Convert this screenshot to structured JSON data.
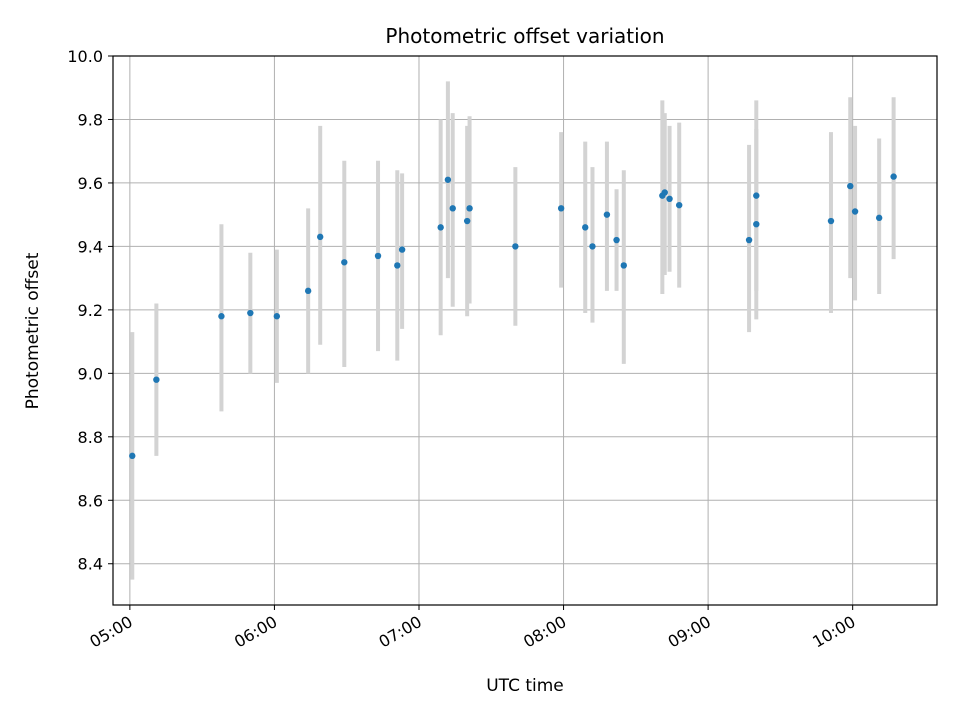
{
  "chart_data": {
    "type": "scatter",
    "title": "Photometric offset variation",
    "xlabel": "UTC time",
    "ylabel": "Photometric offset",
    "ylim": [
      8.27,
      10.0
    ],
    "xlim": [
      "04:53",
      "10:35"
    ],
    "yticks": [
      "8.4",
      "8.6",
      "8.8",
      "9.0",
      "9.2",
      "9.4",
      "9.6",
      "9.8",
      "10.0"
    ],
    "xticks": [
      "05:00",
      "06:00",
      "07:00",
      "08:00",
      "09:00",
      "10:00"
    ],
    "grid": true,
    "colors": {
      "point": "#1f77b4",
      "errorbar": "#d3d3d3",
      "grid": "#b0b0b0"
    },
    "points": [
      {
        "t": "05:01",
        "y": 8.74,
        "lo": 8.35,
        "hi": 9.13
      },
      {
        "t": "05:11",
        "y": 8.98,
        "lo": 8.74,
        "hi": 9.22
      },
      {
        "t": "05:38",
        "y": 9.18,
        "lo": 8.88,
        "hi": 9.47
      },
      {
        "t": "05:50",
        "y": 9.19,
        "lo": 9.0,
        "hi": 9.38
      },
      {
        "t": "06:01",
        "y": 9.18,
        "lo": 8.97,
        "hi": 9.39
      },
      {
        "t": "06:14",
        "y": 9.26,
        "lo": 9.0,
        "hi": 9.52
      },
      {
        "t": "06:19",
        "y": 9.43,
        "lo": 9.09,
        "hi": 9.78
      },
      {
        "t": "06:29",
        "y": 9.35,
        "lo": 9.02,
        "hi": 9.67
      },
      {
        "t": "06:43",
        "y": 9.37,
        "lo": 9.07,
        "hi": 9.67
      },
      {
        "t": "06:51",
        "y": 9.34,
        "lo": 9.04,
        "hi": 9.64
      },
      {
        "t": "06:53",
        "y": 9.39,
        "lo": 9.14,
        "hi": 9.63
      },
      {
        "t": "07:09",
        "y": 9.46,
        "lo": 9.12,
        "hi": 9.8
      },
      {
        "t": "07:12",
        "y": 9.61,
        "lo": 9.3,
        "hi": 9.92
      },
      {
        "t": "07:14",
        "y": 9.52,
        "lo": 9.21,
        "hi": 9.82
      },
      {
        "t": "07:20",
        "y": 9.48,
        "lo": 9.18,
        "hi": 9.78
      },
      {
        "t": "07:21",
        "y": 9.52,
        "lo": 9.22,
        "hi": 9.81
      },
      {
        "t": "07:40",
        "y": 9.4,
        "lo": 9.15,
        "hi": 9.65
      },
      {
        "t": "07:59",
        "y": 9.52,
        "lo": 9.27,
        "hi": 9.76
      },
      {
        "t": "08:09",
        "y": 9.46,
        "lo": 9.19,
        "hi": 9.73
      },
      {
        "t": "08:12",
        "y": 9.4,
        "lo": 9.16,
        "hi": 9.65
      },
      {
        "t": "08:18",
        "y": 9.5,
        "lo": 9.26,
        "hi": 9.73
      },
      {
        "t": "08:22",
        "y": 9.42,
        "lo": 9.26,
        "hi": 9.58
      },
      {
        "t": "08:25",
        "y": 9.34,
        "lo": 9.03,
        "hi": 9.64
      },
      {
        "t": "08:41",
        "y": 9.56,
        "lo": 9.25,
        "hi": 9.86
      },
      {
        "t": "08:42",
        "y": 9.57,
        "lo": 9.31,
        "hi": 9.82
      },
      {
        "t": "08:44",
        "y": 9.55,
        "lo": 9.32,
        "hi": 9.78
      },
      {
        "t": "08:48",
        "y": 9.53,
        "lo": 9.27,
        "hi": 9.79
      },
      {
        "t": "09:17",
        "y": 9.42,
        "lo": 9.13,
        "hi": 9.72
      },
      {
        "t": "09:20",
        "y": 9.56,
        "lo": 9.26,
        "hi": 9.86
      },
      {
        "t": "09:20",
        "y": 9.47,
        "lo": 9.17,
        "hi": 9.77
      },
      {
        "t": "09:51",
        "y": 9.48,
        "lo": 9.19,
        "hi": 9.76
      },
      {
        "t": "09:59",
        "y": 9.59,
        "lo": 9.3,
        "hi": 9.87
      },
      {
        "t": "10:01",
        "y": 9.51,
        "lo": 9.23,
        "hi": 9.78
      },
      {
        "t": "10:11",
        "y": 9.49,
        "lo": 9.25,
        "hi": 9.74
      },
      {
        "t": "10:17",
        "y": 9.62,
        "lo": 9.36,
        "hi": 9.87
      }
    ]
  }
}
